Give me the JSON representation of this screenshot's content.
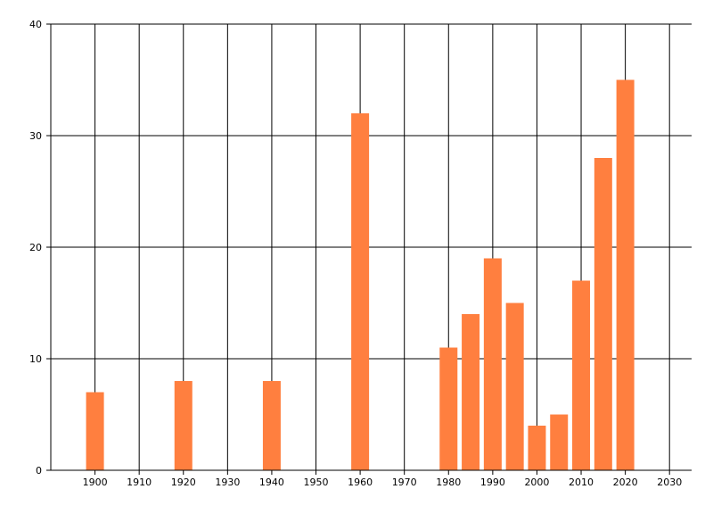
{
  "chart_data": {
    "type": "bar",
    "title": "",
    "xlabel": "",
    "ylabel": "",
    "x": [
      1900,
      1920,
      1940,
      1960,
      1980,
      1985,
      1990,
      1995,
      2000,
      2005,
      2010,
      2015,
      2020
    ],
    "values": [
      7,
      8,
      8,
      32,
      11,
      14,
      19,
      15,
      4,
      5,
      17,
      28,
      35
    ],
    "xlim": [
      1890,
      2035
    ],
    "ylim": [
      0,
      40
    ],
    "xticks": [
      "1900",
      "1910",
      "1920",
      "1930",
      "1940",
      "1950",
      "1960",
      "1970",
      "1980",
      "1990",
      "2000",
      "2010",
      "2020",
      "2030"
    ],
    "yticks": [
      "0",
      "10",
      "20",
      "30",
      "40"
    ],
    "grid": true,
    "legend": "none",
    "bar_color": "#ff7f3f",
    "grid_color": "#000000"
  }
}
